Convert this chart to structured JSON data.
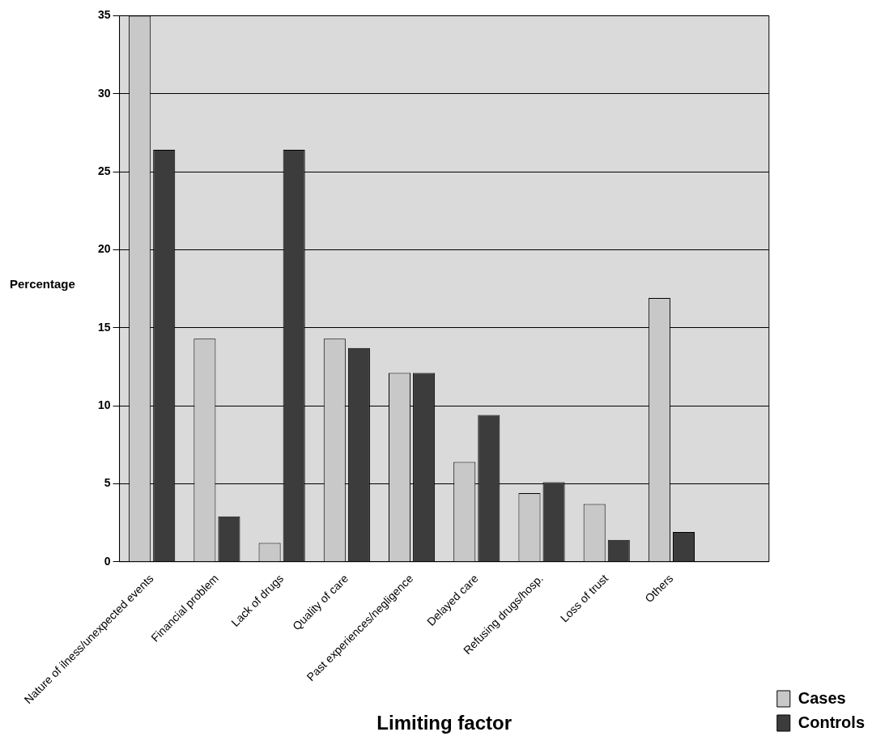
{
  "chart_data": {
    "type": "bar",
    "xlabel": "Limiting factor",
    "ylabel": "Percentage",
    "categories": [
      "Nature of ilness/unexpected events",
      "Financial problem",
      "Lack of drugs",
      "Quality of care",
      "Past experiences/negligence",
      "Delayed care",
      "Refusing drugs/hosp.",
      "Loss of trust",
      "Others",
      null
    ],
    "series": [
      {
        "name": "Cases",
        "color": "#c8c8c8",
        "values": [
          35,
          14.3,
          1.2,
          14.3,
          12.1,
          6.4,
          4.4,
          3.7,
          16.9,
          null
        ]
      },
      {
        "name": "Controls",
        "color": "#3c3c3c",
        "values": [
          26.4,
          2.9,
          26.4,
          13.7,
          12.1,
          9.4,
          5.1,
          1.4,
          1.9,
          null
        ]
      }
    ],
    "ylim": [
      0,
      35
    ],
    "yticks": [
      0,
      5,
      10,
      15,
      20,
      25,
      30,
      35
    ],
    "grid": "y",
    "legend": "bottom right"
  }
}
